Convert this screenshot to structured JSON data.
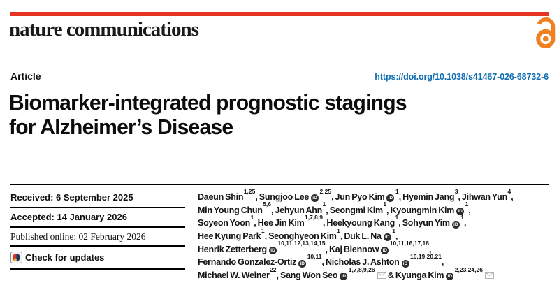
{
  "masthead": {
    "journal_name": "nature communications"
  },
  "meta_row": {
    "article_label": "Article",
    "doi": "https://doi.org/10.1038/s41467-026-68732-6"
  },
  "title": {
    "line1": "Biomarker-integrated prognostic stagings",
    "line2": "for Alzheimer’s Disease"
  },
  "history": {
    "received": "Received: 6 September 2025",
    "accepted": "Accepted: 14 January 2026",
    "published": "Published online: 02 February 2026",
    "check_updates_label": "Check for updates"
  },
  "icons": {
    "open_access": "open-access-lock-icon",
    "crossmark": "crossmark-circle-icon",
    "orcid_glyph": "iD",
    "email": "envelope-icon"
  },
  "colors": {
    "accent_red": "#e63323",
    "oa_orange": "#f08120",
    "link_blue": "#0f6eb3",
    "rule_black": "#000000",
    "text_dark": "#141414",
    "mail_gray": "#b5b5b5"
  },
  "authors": {
    "lines": [
      [
        {
          "name": "Daeun Shin",
          "sup": "1,25",
          "tail": ", "
        },
        {
          "name": "Sungjoo Lee",
          "orcid": true,
          "sup": "2,25",
          "tail": ", "
        },
        {
          "name": "Jun Pyo Kim",
          "orcid": true,
          "sup": "1",
          "tail": ", "
        },
        {
          "name": "Hyemin Jang",
          "sup": "3",
          "tail": ", "
        },
        {
          "name": "Jihwan Yun",
          "sup": "4",
          "tail": ","
        }
      ],
      [
        {
          "name": "Min Young Chun",
          "sup": "5,6",
          "tail": ", "
        },
        {
          "name": "Jehyun Ahn",
          "sup": "1",
          "tail": ", "
        },
        {
          "name": "Seongmi Kim",
          "sup": "1",
          "tail": ", "
        },
        {
          "name": "Kyoungmin Kim",
          "orcid": true,
          "sup": "1",
          "tail": ","
        }
      ],
      [
        {
          "name": "Soyeon Yoon",
          "sup": "1",
          "tail": ", "
        },
        {
          "name": "Hee Jin Kim",
          "sup": "1,7,8,9",
          "tail": ", "
        },
        {
          "name": "Heekyoung Kang",
          "sup": "1",
          "tail": ", "
        },
        {
          "name": "Sohyun Yim",
          "orcid": true,
          "sup": "1",
          "tail": ","
        }
      ],
      [
        {
          "name": "Hee Kyung Park",
          "sup": "1",
          "tail": ", "
        },
        {
          "name": "Seonghyeon Kim",
          "sup": "1",
          "tail": ", "
        },
        {
          "name": "Duk L. Na",
          "orcid": true,
          "sup": "1",
          "tail": ","
        }
      ],
      [
        {
          "name": "Henrik Zetterberg",
          "orcid": true,
          "sup": "10,11,12,13,14,15",
          "tail": ", "
        },
        {
          "name": "Kaj Blennow",
          "orcid": true,
          "sup": "10,11,16,17,18",
          "tail": ","
        }
      ],
      [
        {
          "name": "Fernando Gonzalez-Ortiz",
          "orcid": true,
          "sup": "10,11",
          "tail": ", "
        },
        {
          "name": "Nicholas J. Ashton",
          "orcid": true,
          "sup": "10,19,20,21",
          "tail": ","
        }
      ],
      [
        {
          "name": "Michael W. Weiner",
          "sup": "22",
          "tail": ", "
        },
        {
          "name": "Sang Won Seo",
          "orcid": true,
          "sup": "1,7,8,9,26",
          "mail": true,
          "tail": " & "
        },
        {
          "name": "Kyunga Kim",
          "orcid": true,
          "sup": "2,23,24,26",
          "mail": true
        }
      ]
    ]
  }
}
